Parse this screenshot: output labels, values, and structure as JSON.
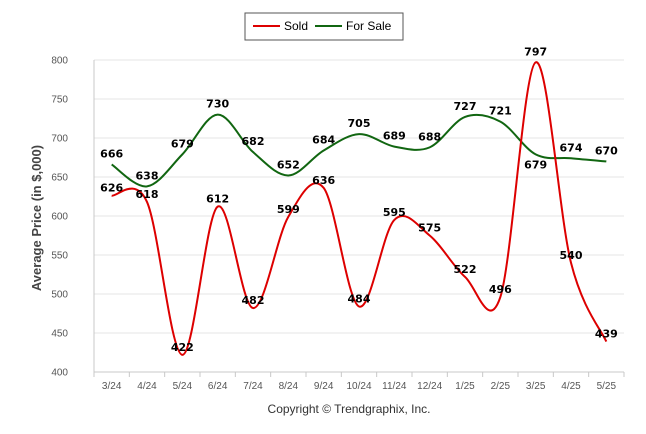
{
  "chart_data": {
    "type": "line",
    "ylabel": "Average Price (in $,000)",
    "credit": "Copyright © Trendgraphix, Inc.",
    "categories": [
      "3/24",
      "4/24",
      "5/24",
      "6/24",
      "7/24",
      "8/24",
      "9/24",
      "10/24",
      "11/24",
      "12/24",
      "1/25",
      "2/25",
      "3/25",
      "4/25",
      "5/25"
    ],
    "ylim": [
      400,
      800
    ],
    "yticks": [
      400,
      450,
      500,
      550,
      600,
      650,
      700,
      750,
      800
    ],
    "grid": true,
    "legend_position": "top-center",
    "series": [
      {
        "name": "Sold",
        "color": "#dd0000",
        "values": [
          626,
          618,
          422,
          612,
          482,
          599,
          636,
          484,
          595,
          575,
          522,
          496,
          797,
          540,
          439
        ]
      },
      {
        "name": "For Sale",
        "color": "#116611",
        "values": [
          666,
          638,
          679,
          730,
          682,
          652,
          684,
          705,
          689,
          688,
          727,
          721,
          679,
          674,
          670
        ]
      }
    ]
  }
}
